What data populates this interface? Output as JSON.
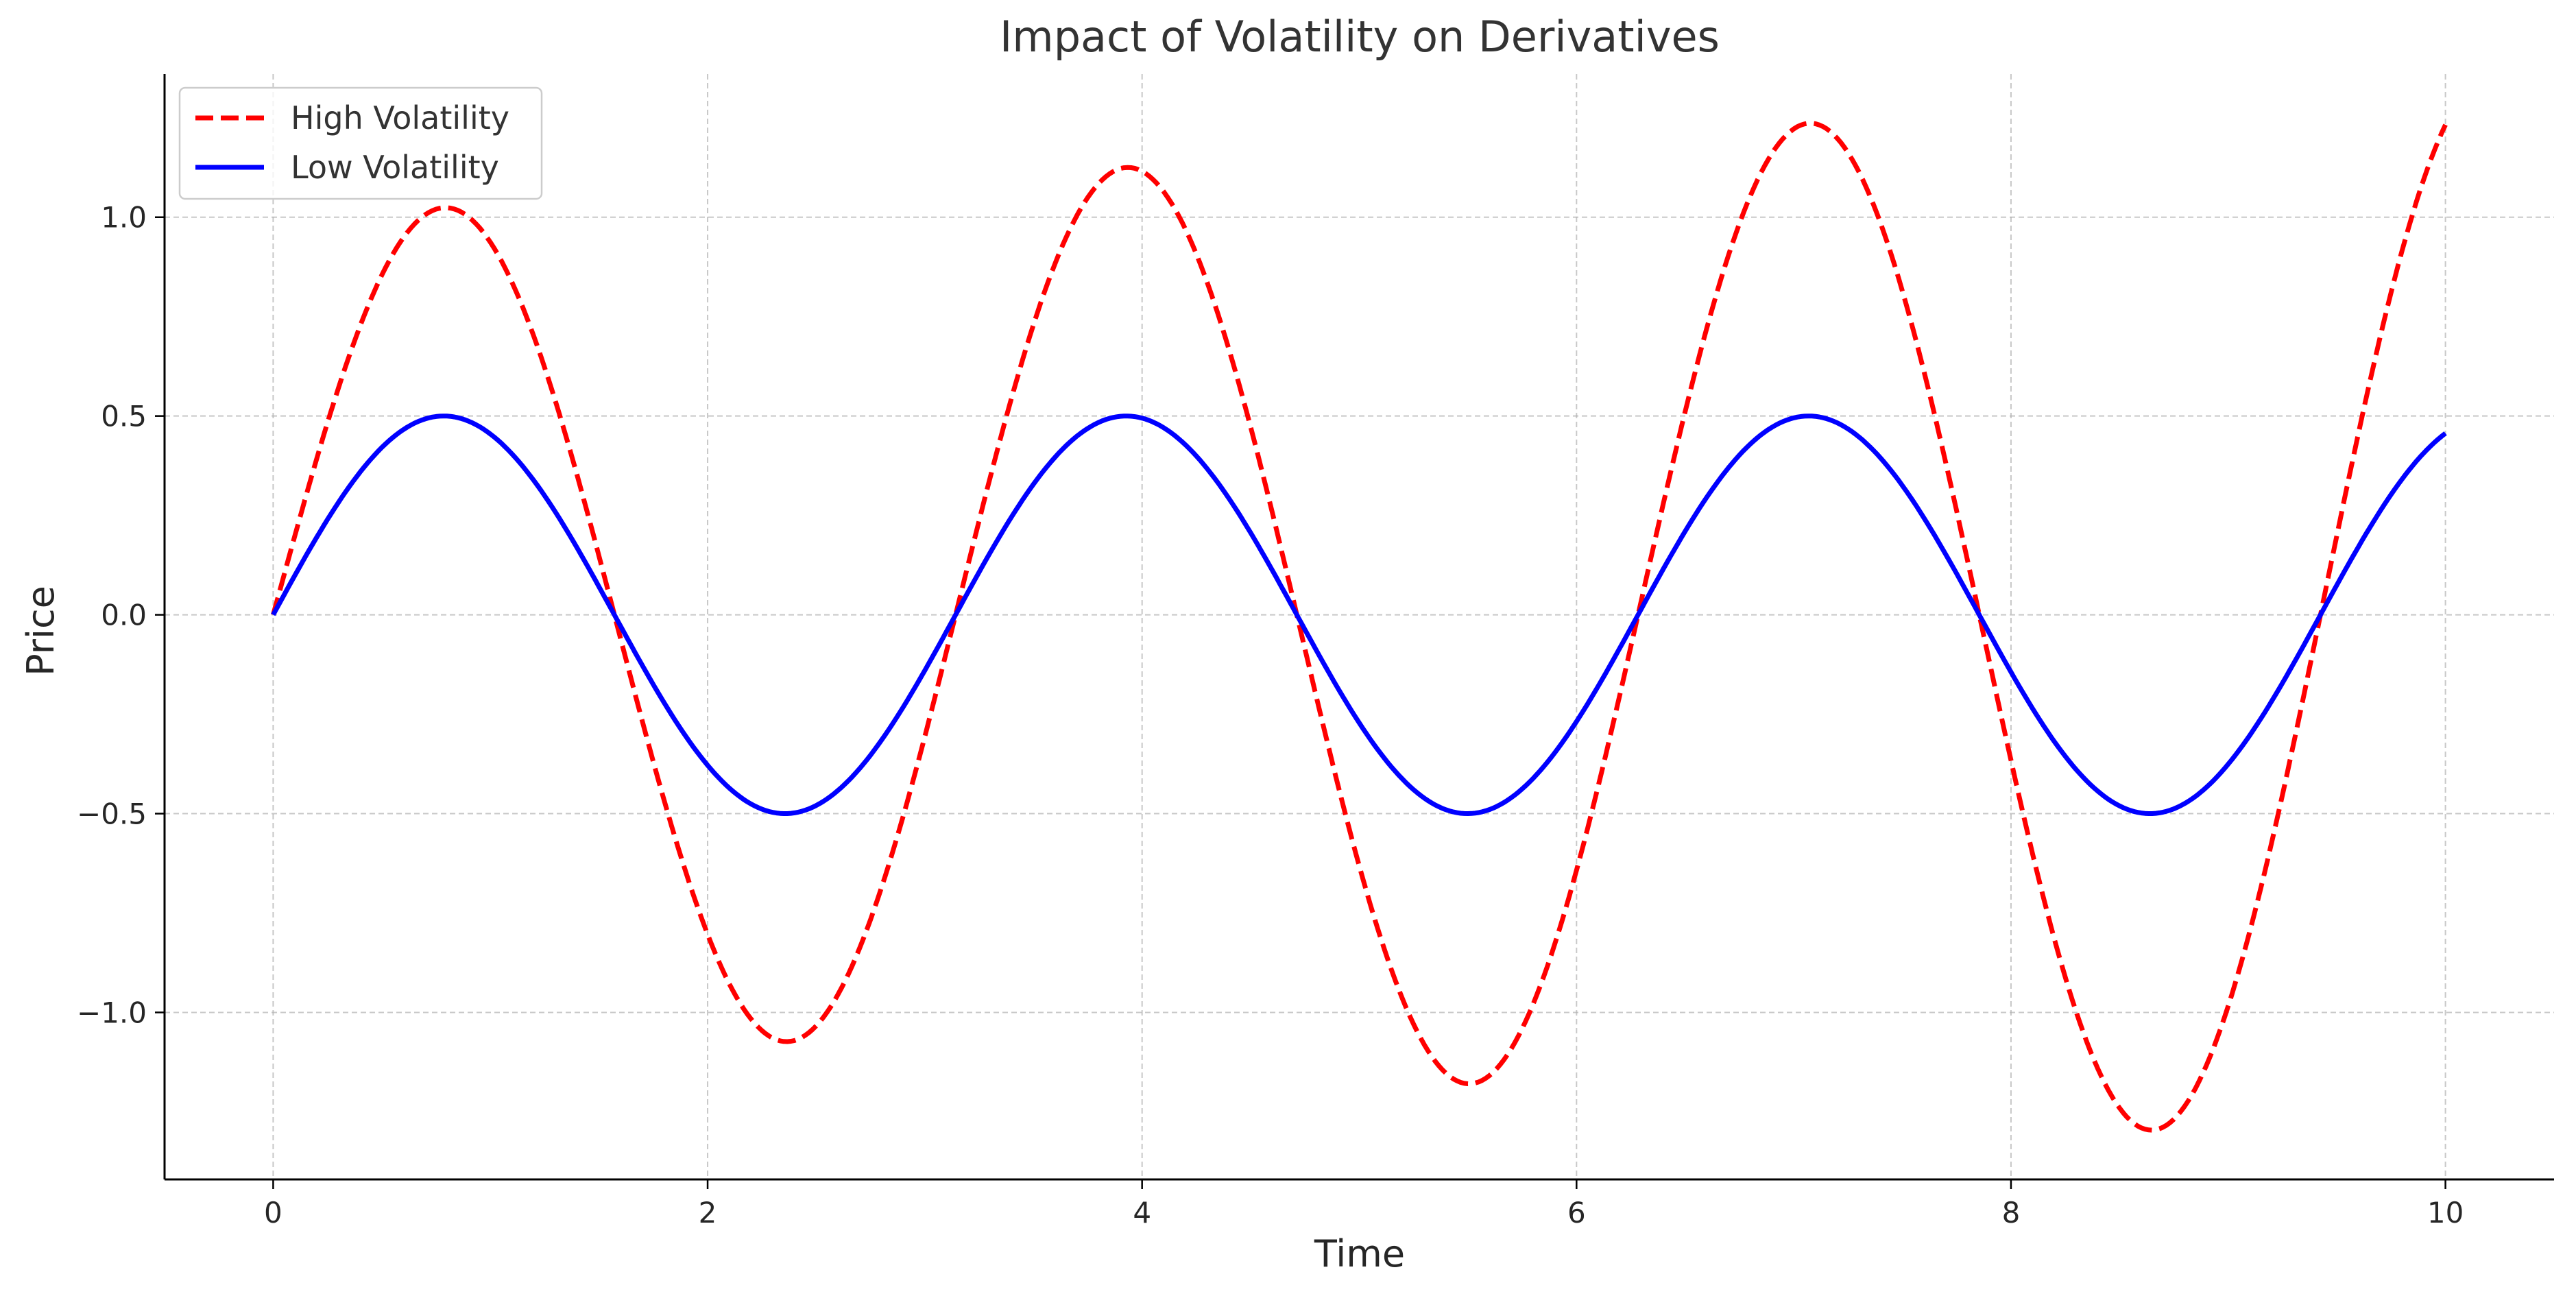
{
  "chart_data": {
    "type": "line",
    "title": "Impact of Volatility on Derivatives",
    "xlabel": "Time",
    "ylabel": "Price",
    "xlim": [
      -0.5,
      10.5
    ],
    "ylim": [
      -1.42,
      1.36
    ],
    "xticks": [
      0,
      2,
      4,
      6,
      8,
      10
    ],
    "xtick_labels": [
      "0",
      "2",
      "4",
      "6",
      "8",
      "10"
    ],
    "yticks": [
      -1.0,
      -0.5,
      0.0,
      0.5,
      1.0
    ],
    "ytick_labels": [
      "−1.0",
      "−0.5",
      "0.0",
      "0.5",
      "1.0"
    ],
    "grid": true,
    "legend_position": "top-left",
    "x_range": [
      0,
      10
    ],
    "series": [
      {
        "name": "High Volatility",
        "color": "#ff0000",
        "style": "dashed",
        "description": "sin(2·t)·e^(0.03·t)",
        "key_points": [
          {
            "x": 0.0,
            "y": 0.0
          },
          {
            "x": 0.79,
            "y": 1.02
          },
          {
            "x": 1.57,
            "y": 0.0
          },
          {
            "x": 2.36,
            "y": -1.07
          },
          {
            "x": 3.14,
            "y": 0.0
          },
          {
            "x": 3.93,
            "y": 1.12
          },
          {
            "x": 4.71,
            "y": 0.0
          },
          {
            "x": 5.5,
            "y": -1.18
          },
          {
            "x": 6.28,
            "y": 0.0
          },
          {
            "x": 7.07,
            "y": 1.24
          },
          {
            "x": 7.85,
            "y": 0.0
          },
          {
            "x": 8.64,
            "y": -1.3
          },
          {
            "x": 9.42,
            "y": 0.0
          },
          {
            "x": 10.0,
            "y": 1.23
          }
        ]
      },
      {
        "name": "Low Volatility",
        "color": "#0000ff",
        "style": "solid",
        "description": "0.5·sin(2·t)",
        "key_points": [
          {
            "x": 0.0,
            "y": 0.0
          },
          {
            "x": 0.79,
            "y": 0.5
          },
          {
            "x": 1.57,
            "y": 0.0
          },
          {
            "x": 2.36,
            "y": -0.5
          },
          {
            "x": 3.14,
            "y": 0.0
          },
          {
            "x": 3.93,
            "y": 0.5
          },
          {
            "x": 4.71,
            "y": 0.0
          },
          {
            "x": 5.5,
            "y": -0.5
          },
          {
            "x": 6.28,
            "y": 0.0
          },
          {
            "x": 7.07,
            "y": 0.5
          },
          {
            "x": 7.85,
            "y": 0.0
          },
          {
            "x": 8.64,
            "y": -0.5
          },
          {
            "x": 9.42,
            "y": 0.0
          },
          {
            "x": 10.0,
            "y": 0.46
          }
        ]
      }
    ]
  }
}
